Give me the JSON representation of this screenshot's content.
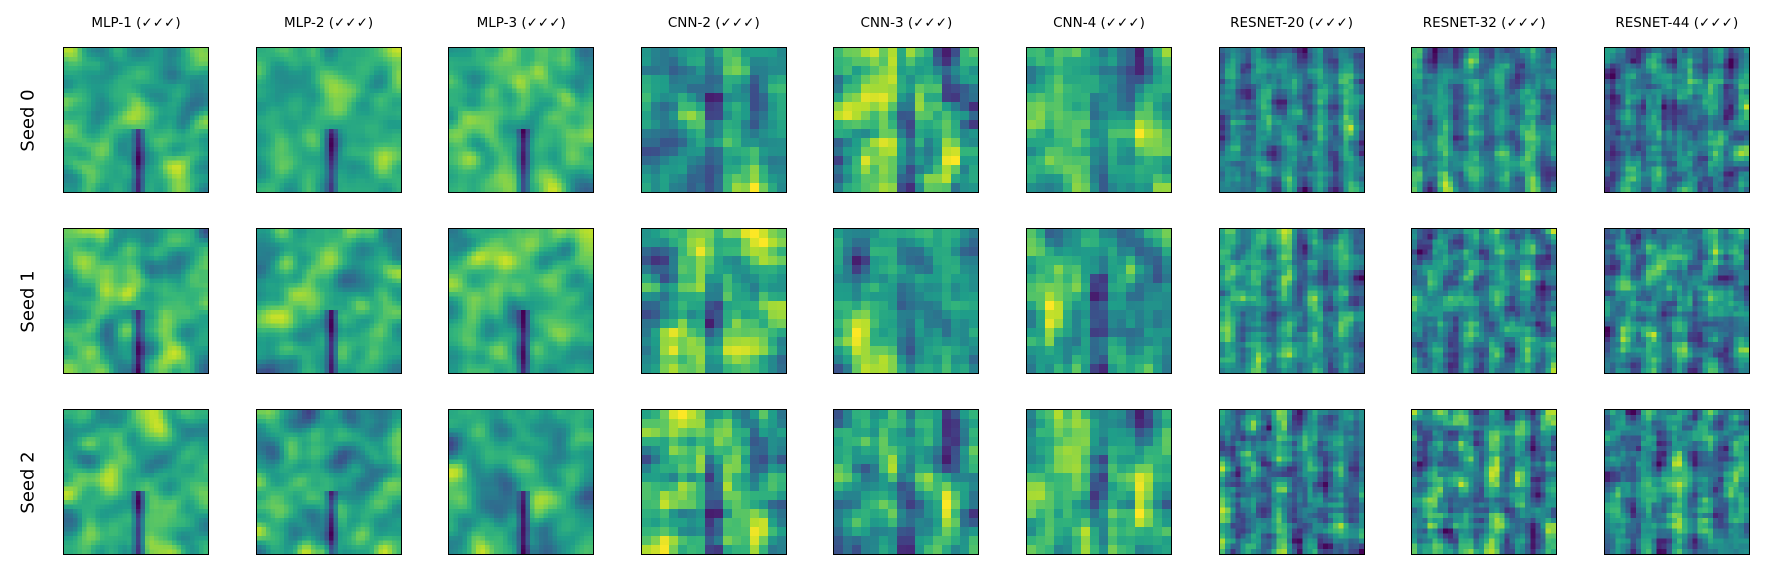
{
  "chart_data": {
    "type": "heatmap",
    "colormap": "viridis",
    "axes": "hidden",
    "columns": [
      "MLP-1 (✓✓✓)",
      "MLP-2 (✓✓✓)",
      "MLP-3 (✓✓✓)",
      "CNN-2 (✓✓✓)",
      "CNN-3 (✓✓✓)",
      "CNN-4 (✓✓✓)",
      "RESNET-20 (✓✓✓)",
      "RESNET-32 (✓✓✓)",
      "RESNET-44 (✓✓✓)"
    ],
    "rows": [
      "Seed 0",
      "Seed 1",
      "Seed 2"
    ],
    "grid_resolution": [
      32,
      32,
      32,
      16,
      16,
      16,
      28,
      28,
      28
    ],
    "colors": {
      "frame": "#000000",
      "background": "#ffffff"
    }
  }
}
